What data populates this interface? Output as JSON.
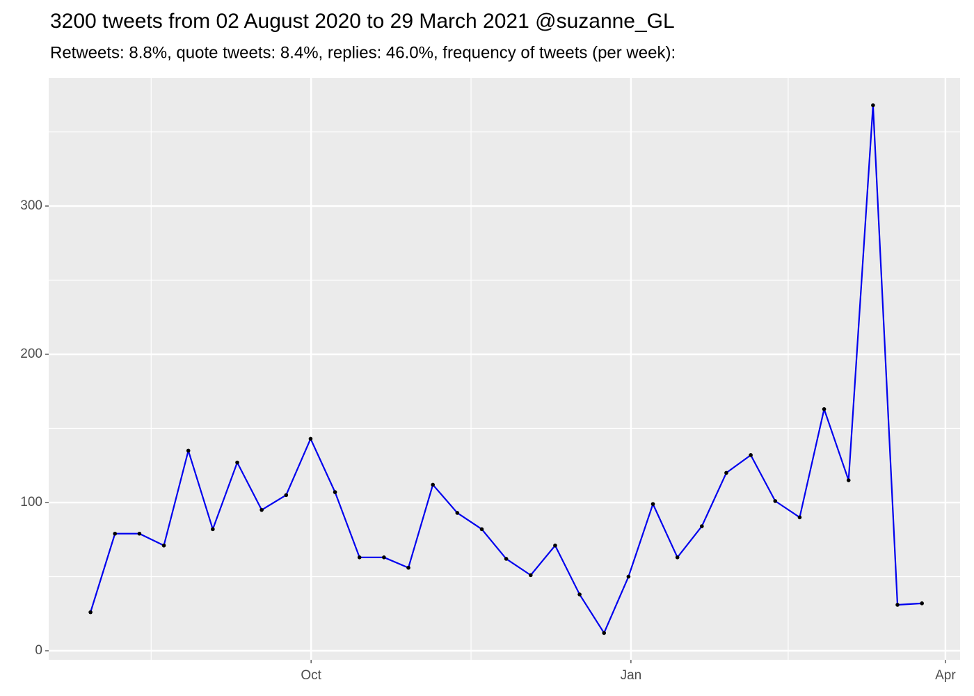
{
  "chart_data": {
    "type": "line",
    "title": "3200 tweets from 02 August 2020 to 29 March 2021 @suzanne_GL",
    "subtitle": "Retweets: 8.8%, quote tweets: 8.4%, replies: 46.0%, frequency of tweets (per week):",
    "categories": [
      null,
      null,
      null,
      null,
      null,
      null,
      null,
      null,
      null,
      null,
      null,
      null,
      null,
      null,
      null,
      null,
      null,
      null,
      null,
      null,
      null,
      null,
      null,
      null,
      null,
      null,
      null,
      null,
      null,
      null,
      null,
      null,
      null,
      null,
      null
    ],
    "values": [
      26,
      79,
      79,
      71,
      135,
      82,
      127,
      95,
      105,
      143,
      107,
      63,
      63,
      56,
      112,
      93,
      82,
      62,
      51,
      71,
      38,
      12,
      50,
      99,
      63,
      84,
      120,
      132,
      101,
      90,
      163,
      115,
      368,
      31,
      32
    ],
    "color": "#0000ee",
    "point_color": "#000000",
    "xlim": [
      -1.71,
      35.56
    ],
    "xticks": [
      {
        "value": 9.02,
        "label": "Oct"
      },
      {
        "value": 22.1,
        "label": "Jan"
      },
      {
        "value": 34.96,
        "label": "Apr"
      }
    ],
    "ylim": [
      -6.1,
      386.4
    ],
    "yticks": [
      0,
      100,
      200,
      300
    ],
    "grid": true
  }
}
